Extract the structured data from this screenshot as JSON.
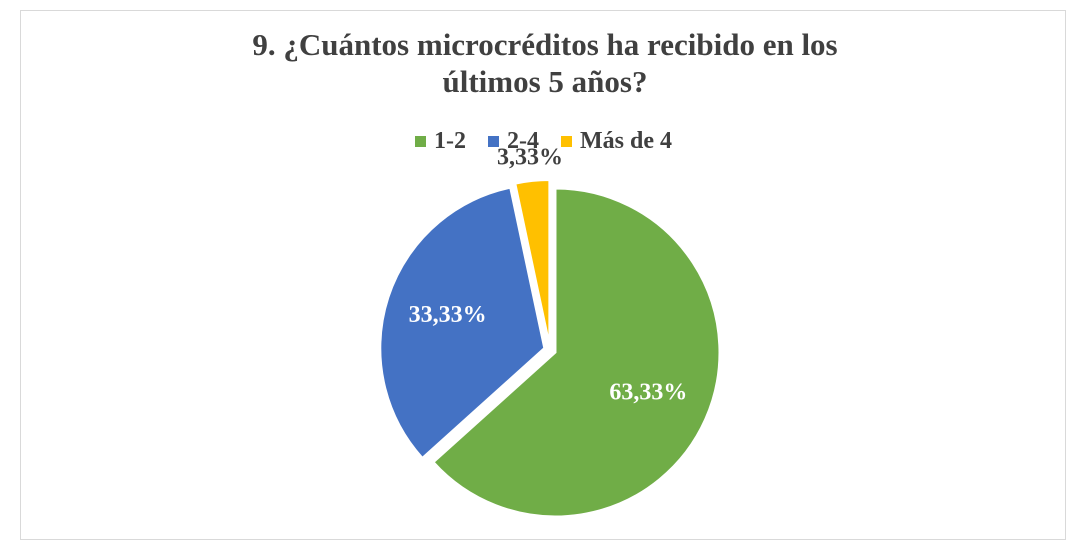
{
  "chart_data": {
    "type": "pie",
    "title": "9. ¿Cuántos microcréditos ha recibido en los últimos 5 años?",
    "categories": [
      "1-2",
      "2-4",
      "Más de 4"
    ],
    "values": [
      63.33,
      33.33,
      3.33
    ],
    "value_labels": [
      "63,33%",
      "33,33%",
      "3,33%"
    ],
    "colors": [
      "#70ad47",
      "#4472c4",
      "#ffc000"
    ],
    "legend": "top"
  }
}
